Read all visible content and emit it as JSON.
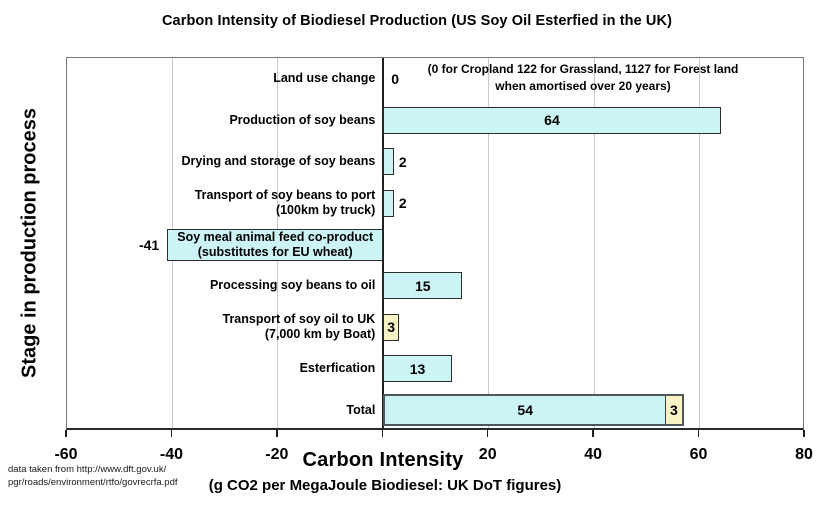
{
  "chart_data": {
    "type": "bar",
    "orientation": "horizontal",
    "title": "Carbon Intensity of Biodiesel Production (US Soy Oil Esterfied in the UK)",
    "xlabel": "Carbon Intensity",
    "xlabel_sub": "(g CO2 per MegaJoule Biodiesel: UK DoT figures)",
    "ylabel": "Stage in production process",
    "xlim": [
      -60,
      80
    ],
    "xticks": [
      -60,
      -40,
      -20,
      0,
      20,
      40,
      60,
      80
    ],
    "xtick_labels": [
      "-60",
      "-40",
      "-20",
      "",
      "20",
      "40",
      "60",
      "80"
    ],
    "grid": "vertical",
    "legend_position": "none",
    "colors": {
      "bar_cyan": "#CDF4F4",
      "bar_yellow": "#F8F2C4",
      "bar_border": "#2d2d2d",
      "total_border": "#4e565e",
      "gridline": "#c9c9c9",
      "axis": "#1f1f1f"
    },
    "rows": [
      {
        "label_lines": [
          "Land use change"
        ],
        "value": 0,
        "value_label": "0",
        "value_pos": "axis-right",
        "fill": "cyan",
        "annotation_lines": [
          "(0 for Cropland 122 for Grassland, 1127 for Forest land",
          "when amortised over 20 years)"
        ]
      },
      {
        "label_lines": [
          "Production of soy beans"
        ],
        "value": 64,
        "value_label": "64",
        "value_pos": "inside",
        "fill": "cyan"
      },
      {
        "label_lines": [
          "Drying and storage of soy beans"
        ],
        "value": 2,
        "value_label": "2",
        "value_pos": "bar-right",
        "fill": "cyan"
      },
      {
        "label_lines": [
          "Transport of soy beans to port",
          "(100km by truck)"
        ],
        "value": 2,
        "value_label": "2",
        "value_pos": "bar-right",
        "fill": "cyan"
      },
      {
        "label_lines": [
          "Soy meal animal feed co-product",
          "(substitutes for EU wheat)"
        ],
        "value": -41,
        "value_label": "-41",
        "value_pos": "bar-left",
        "fill": "cyan",
        "label_inside": true
      },
      {
        "label_lines": [
          "Processing soy beans to oil"
        ],
        "value": 15,
        "value_label": "15",
        "value_pos": "inside",
        "fill": "cyan"
      },
      {
        "label_lines": [
          "Transport of soy oil to UK",
          "(7,000 km by Boat)"
        ],
        "value": 3,
        "value_label": "3",
        "value_pos": "inside",
        "fill": "yellow"
      },
      {
        "label_lines": [
          "Esterfication"
        ],
        "value": 13,
        "value_label": "13",
        "value_pos": "inside",
        "fill": "cyan"
      },
      {
        "label_lines": [
          "Total"
        ],
        "is_total": true,
        "segments": [
          {
            "value": 54,
            "value_label": "54",
            "fill": "cyan"
          },
          {
            "value": 3,
            "value_label": "3",
            "fill": "yellow"
          }
        ]
      }
    ]
  },
  "source": {
    "line1": "data taken from http://www.dft.gov.uk/",
    "line2": "pgr/roads/environment/rtfo/govrecrfa.pdf"
  }
}
